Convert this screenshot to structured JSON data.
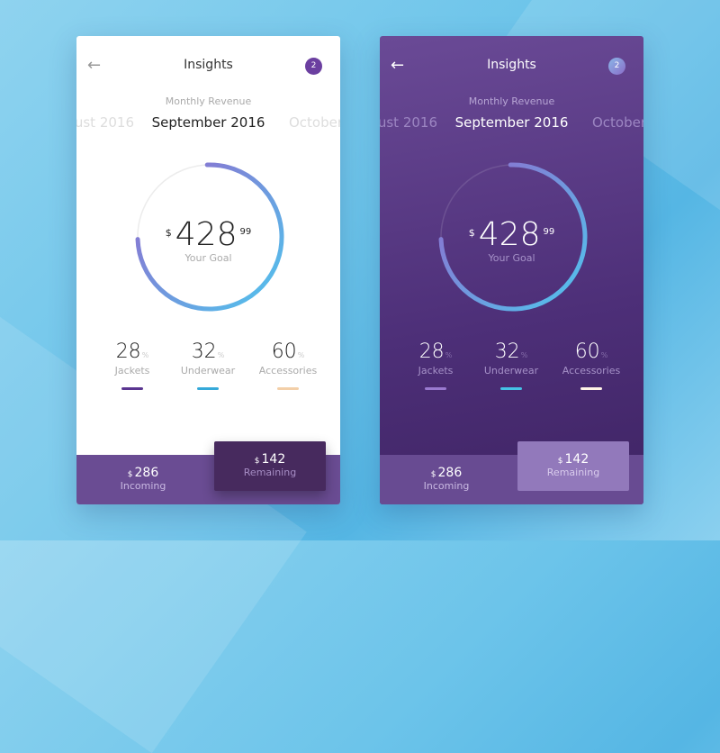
{
  "screens": [
    {
      "theme": "light",
      "title": "Insights",
      "badge": "2",
      "subtitle": "Monthly Revenue",
      "prev_month": "ust 2016",
      "month": "September 2016",
      "next_month": "October",
      "goal": {
        "currency": "$",
        "amount": "428",
        "cents": "99",
        "label": "Your Goal",
        "progress": 0.75
      },
      "stats": [
        {
          "value": "28",
          "unit": "%",
          "label": "Jackets",
          "color": "#5a3590"
        },
        {
          "value": "32",
          "unit": "%",
          "label": "Underwear",
          "color": "#35a9d9"
        },
        {
          "value": "60",
          "unit": "%",
          "label": "Accessories",
          "color": "#f3cfa8"
        }
      ],
      "incoming": {
        "currency": "$",
        "value": "286",
        "label": "Incoming"
      },
      "remaining": {
        "currency": "$",
        "value": "142",
        "label": "Remaining"
      }
    },
    {
      "theme": "dark",
      "title": "Insights",
      "badge": "2",
      "subtitle": "Monthly Revenue",
      "prev_month": "ust 2016",
      "month": "September 2016",
      "next_month": "October",
      "goal": {
        "currency": "$",
        "amount": "428",
        "cents": "99",
        "label": "Your Goal",
        "progress": 0.75
      },
      "stats": [
        {
          "value": "28",
          "unit": "%",
          "label": "Jackets",
          "color": "#9a7ad0"
        },
        {
          "value": "32",
          "unit": "%",
          "label": "Underwear",
          "color": "#45c3e6"
        },
        {
          "value": "60",
          "unit": "%",
          "label": "Accessories",
          "color": "#fff4e6"
        }
      ],
      "incoming": {
        "currency": "$",
        "value": "286",
        "label": "Incoming"
      },
      "remaining": {
        "currency": "$",
        "value": "142",
        "label": "Remaining"
      }
    }
  ],
  "colors": {
    "ring_start": "#4fc6ee",
    "ring_end": "#9466cc"
  }
}
